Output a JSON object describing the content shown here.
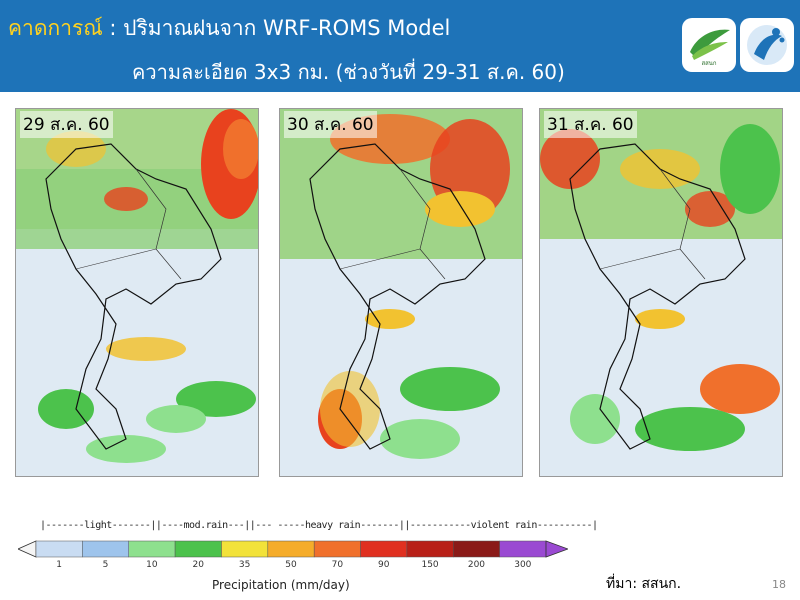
{
  "header": {
    "title_highlight": "คาดการณ์",
    "title_rest": " : ปริมาณฝนจาก WRF-ROMS Model",
    "subtitle": "ความละเอียด 3x3 กม. (ช่วงวันที่ 29-31 ส.ค. 60)",
    "logo1_text": "สสนก",
    "logo1_icon": "leaf-logo",
    "logo2_icon": "water-drop-logo"
  },
  "panels": [
    {
      "date": "29 ส.ค. 60"
    },
    {
      "date": "30 ส.ค. 60"
    },
    {
      "date": "31 ส.ค. 60"
    }
  ],
  "legend": {
    "category_line": "|-------light-------||----mod.rain---||---  -----heavy rain-------||-----------violent rain----------|",
    "ticks": [
      "1",
      "5",
      "10",
      "20",
      "35",
      "50",
      "70",
      "90",
      "150",
      "200",
      "300"
    ],
    "colors": [
      "#f5f5f5",
      "#c9dcf2",
      "#9ec4ec",
      "#8ee08e",
      "#4cc24c",
      "#f2e23a",
      "#f5ac2a",
      "#f0702c",
      "#e03020",
      "#b82018",
      "#8a1a18",
      "#9a4ad2"
    ],
    "xlabel": "Precipitation (mm/day)"
  },
  "footer": {
    "source": "ที่มา: สสนก.",
    "page": "18"
  }
}
